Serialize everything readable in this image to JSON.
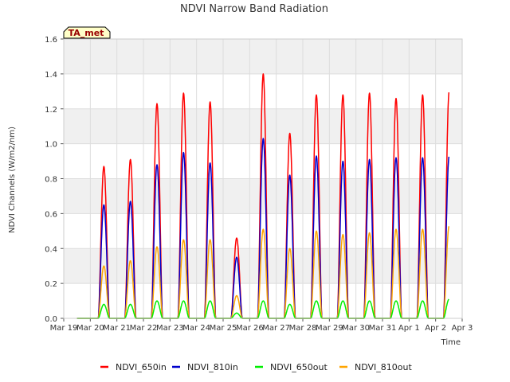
{
  "chart_data": {
    "type": "line",
    "title": "NDVI Narrow Band Radiation",
    "xlabel": "Time",
    "ylabel": "NDVI Channels (W/m2/nm)",
    "badge": "TA_met",
    "ylim": [
      0,
      1.6
    ],
    "yticks": [
      "0.0",
      "0.2",
      "0.4",
      "0.6",
      "0.8",
      "1.0",
      "1.2",
      "1.4",
      "1.6"
    ],
    "xlim": [
      "Mar 19",
      "Apr 3"
    ],
    "xticks": [
      "Mar 19",
      "Mar 20",
      "Mar 21",
      "Mar 22",
      "Mar 23",
      "Mar 24",
      "Mar 25",
      "Mar 26",
      "Mar 27",
      "Mar 28",
      "Mar 29",
      "Mar 30",
      "Mar 31",
      "Apr 1",
      "Apr 2",
      "Apr 3"
    ],
    "grid": true,
    "legend_position": "bottom",
    "series": [
      {
        "name": "NDVI_650in",
        "color": "#ff0000",
        "daily_peaks": [
          0.87,
          0.91,
          1.23,
          1.29,
          1.24,
          0.46,
          1.4,
          1.06,
          1.28,
          1.28,
          1.29,
          1.26,
          1.28,
          1.3
        ]
      },
      {
        "name": "NDVI_810in",
        "color": "#0000cc",
        "daily_peaks": [
          0.65,
          0.67,
          0.88,
          0.95,
          0.89,
          0.35,
          1.03,
          0.82,
          0.93,
          0.9,
          0.91,
          0.92,
          0.92,
          0.93
        ]
      },
      {
        "name": "NDVI_650out",
        "color": "#00ee00",
        "daily_peaks": [
          0.08,
          0.08,
          0.1,
          0.1,
          0.1,
          0.03,
          0.1,
          0.08,
          0.1,
          0.1,
          0.1,
          0.1,
          0.1,
          0.11
        ]
      },
      {
        "name": "NDVI_810out",
        "color": "#ffa500",
        "daily_peaks": [
          0.3,
          0.33,
          0.41,
          0.45,
          0.45,
          0.13,
          0.51,
          0.4,
          0.5,
          0.48,
          0.49,
          0.51,
          0.51,
          0.53
        ]
      }
    ]
  }
}
